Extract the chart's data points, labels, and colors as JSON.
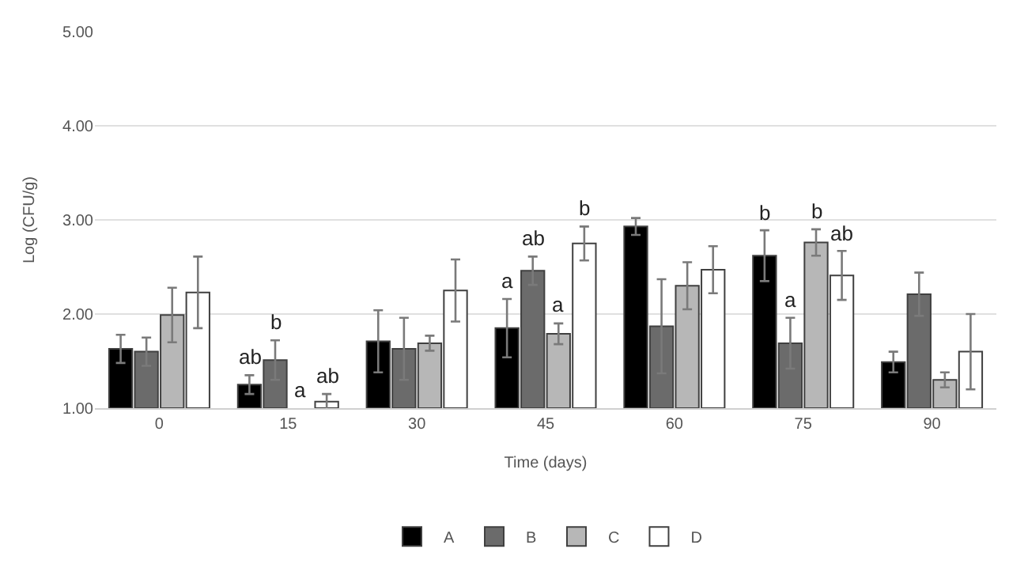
{
  "chart_data": {
    "type": "bar",
    "xlabel": "Time (days)",
    "ylabel": "Log (CFU/g)",
    "categories": [
      "0",
      "15",
      "30",
      "45",
      "60",
      "75",
      "90"
    ],
    "series": [
      {
        "name": "A",
        "color": "#000000",
        "values": [
          1.63,
          1.25,
          1.71,
          1.85,
          2.93,
          2.62,
          1.49
        ],
        "errors": [
          0.15,
          0.1,
          0.33,
          0.31,
          0.09,
          0.27,
          0.11
        ],
        "value_labels": [
          null,
          "ab",
          null,
          "a",
          null,
          "b",
          null
        ]
      },
      {
        "name": "B",
        "color": "#6b6b6b",
        "values": [
          1.6,
          1.51,
          1.63,
          2.46,
          1.87,
          1.69,
          2.21
        ],
        "errors": [
          0.15,
          0.21,
          0.33,
          0.15,
          0.5,
          0.27,
          0.23
        ],
        "value_labels": [
          null,
          "b",
          null,
          "ab",
          null,
          "a",
          null
        ]
      },
      {
        "name": "C",
        "color": "#b7b7b7",
        "values": [
          1.99,
          null,
          1.69,
          1.79,
          2.3,
          2.76,
          1.3
        ],
        "errors": [
          0.29,
          null,
          0.08,
          0.11,
          0.25,
          0.14,
          0.08
        ],
        "value_labels": [
          null,
          "a",
          null,
          "a",
          null,
          "b",
          null
        ]
      },
      {
        "name": "D",
        "color": "#ffffff",
        "values": [
          2.23,
          1.07,
          2.25,
          2.75,
          2.47,
          2.41,
          1.6
        ],
        "errors": [
          0.38,
          0.08,
          0.33,
          0.18,
          0.25,
          0.26,
          0.4
        ],
        "value_labels": [
          null,
          "ab",
          null,
          "b",
          null,
          "ab",
          null
        ]
      }
    ],
    "ylim": [
      1.0,
      5.0
    ],
    "yticks": [
      {
        "value": 1,
        "label": "1.00"
      },
      {
        "value": 2,
        "label": "2.00"
      },
      {
        "value": 3,
        "label": "3.00"
      },
      {
        "value": 4,
        "label": "4.00"
      },
      {
        "value": 5,
        "label": "5.00"
      }
    ],
    "grid": "y",
    "legend": "bottom"
  }
}
